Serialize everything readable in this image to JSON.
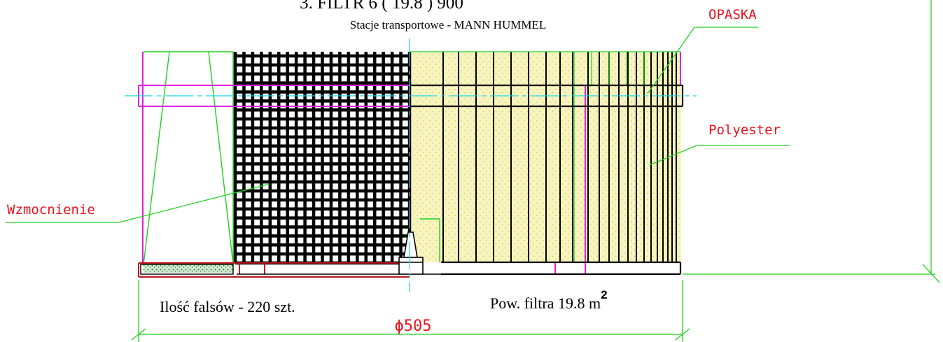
{
  "title": "3. FILTR  6 ( 19.8 ) 900",
  "subtitle": "Stacje transportowe - MANN  HUMMEL",
  "labels": {
    "opaska": "OPASKA",
    "polyester": "Polyester",
    "wzmocnienie": "Wzmocnienie"
  },
  "notes": {
    "folds": "Ilość falsów - 220 szt.",
    "area_prefix": "Pow. filtra  19.8 m",
    "area_exponent": "2"
  },
  "dimension": "ϕ505",
  "colors": {
    "outline": "#000000",
    "leader": "#1fd11f",
    "label": "#e8141e",
    "bracket": "#e020e0",
    "centerline": "#18d4e8",
    "media_fill": "#f7f4c0",
    "media_dot": "#d9cf55"
  }
}
